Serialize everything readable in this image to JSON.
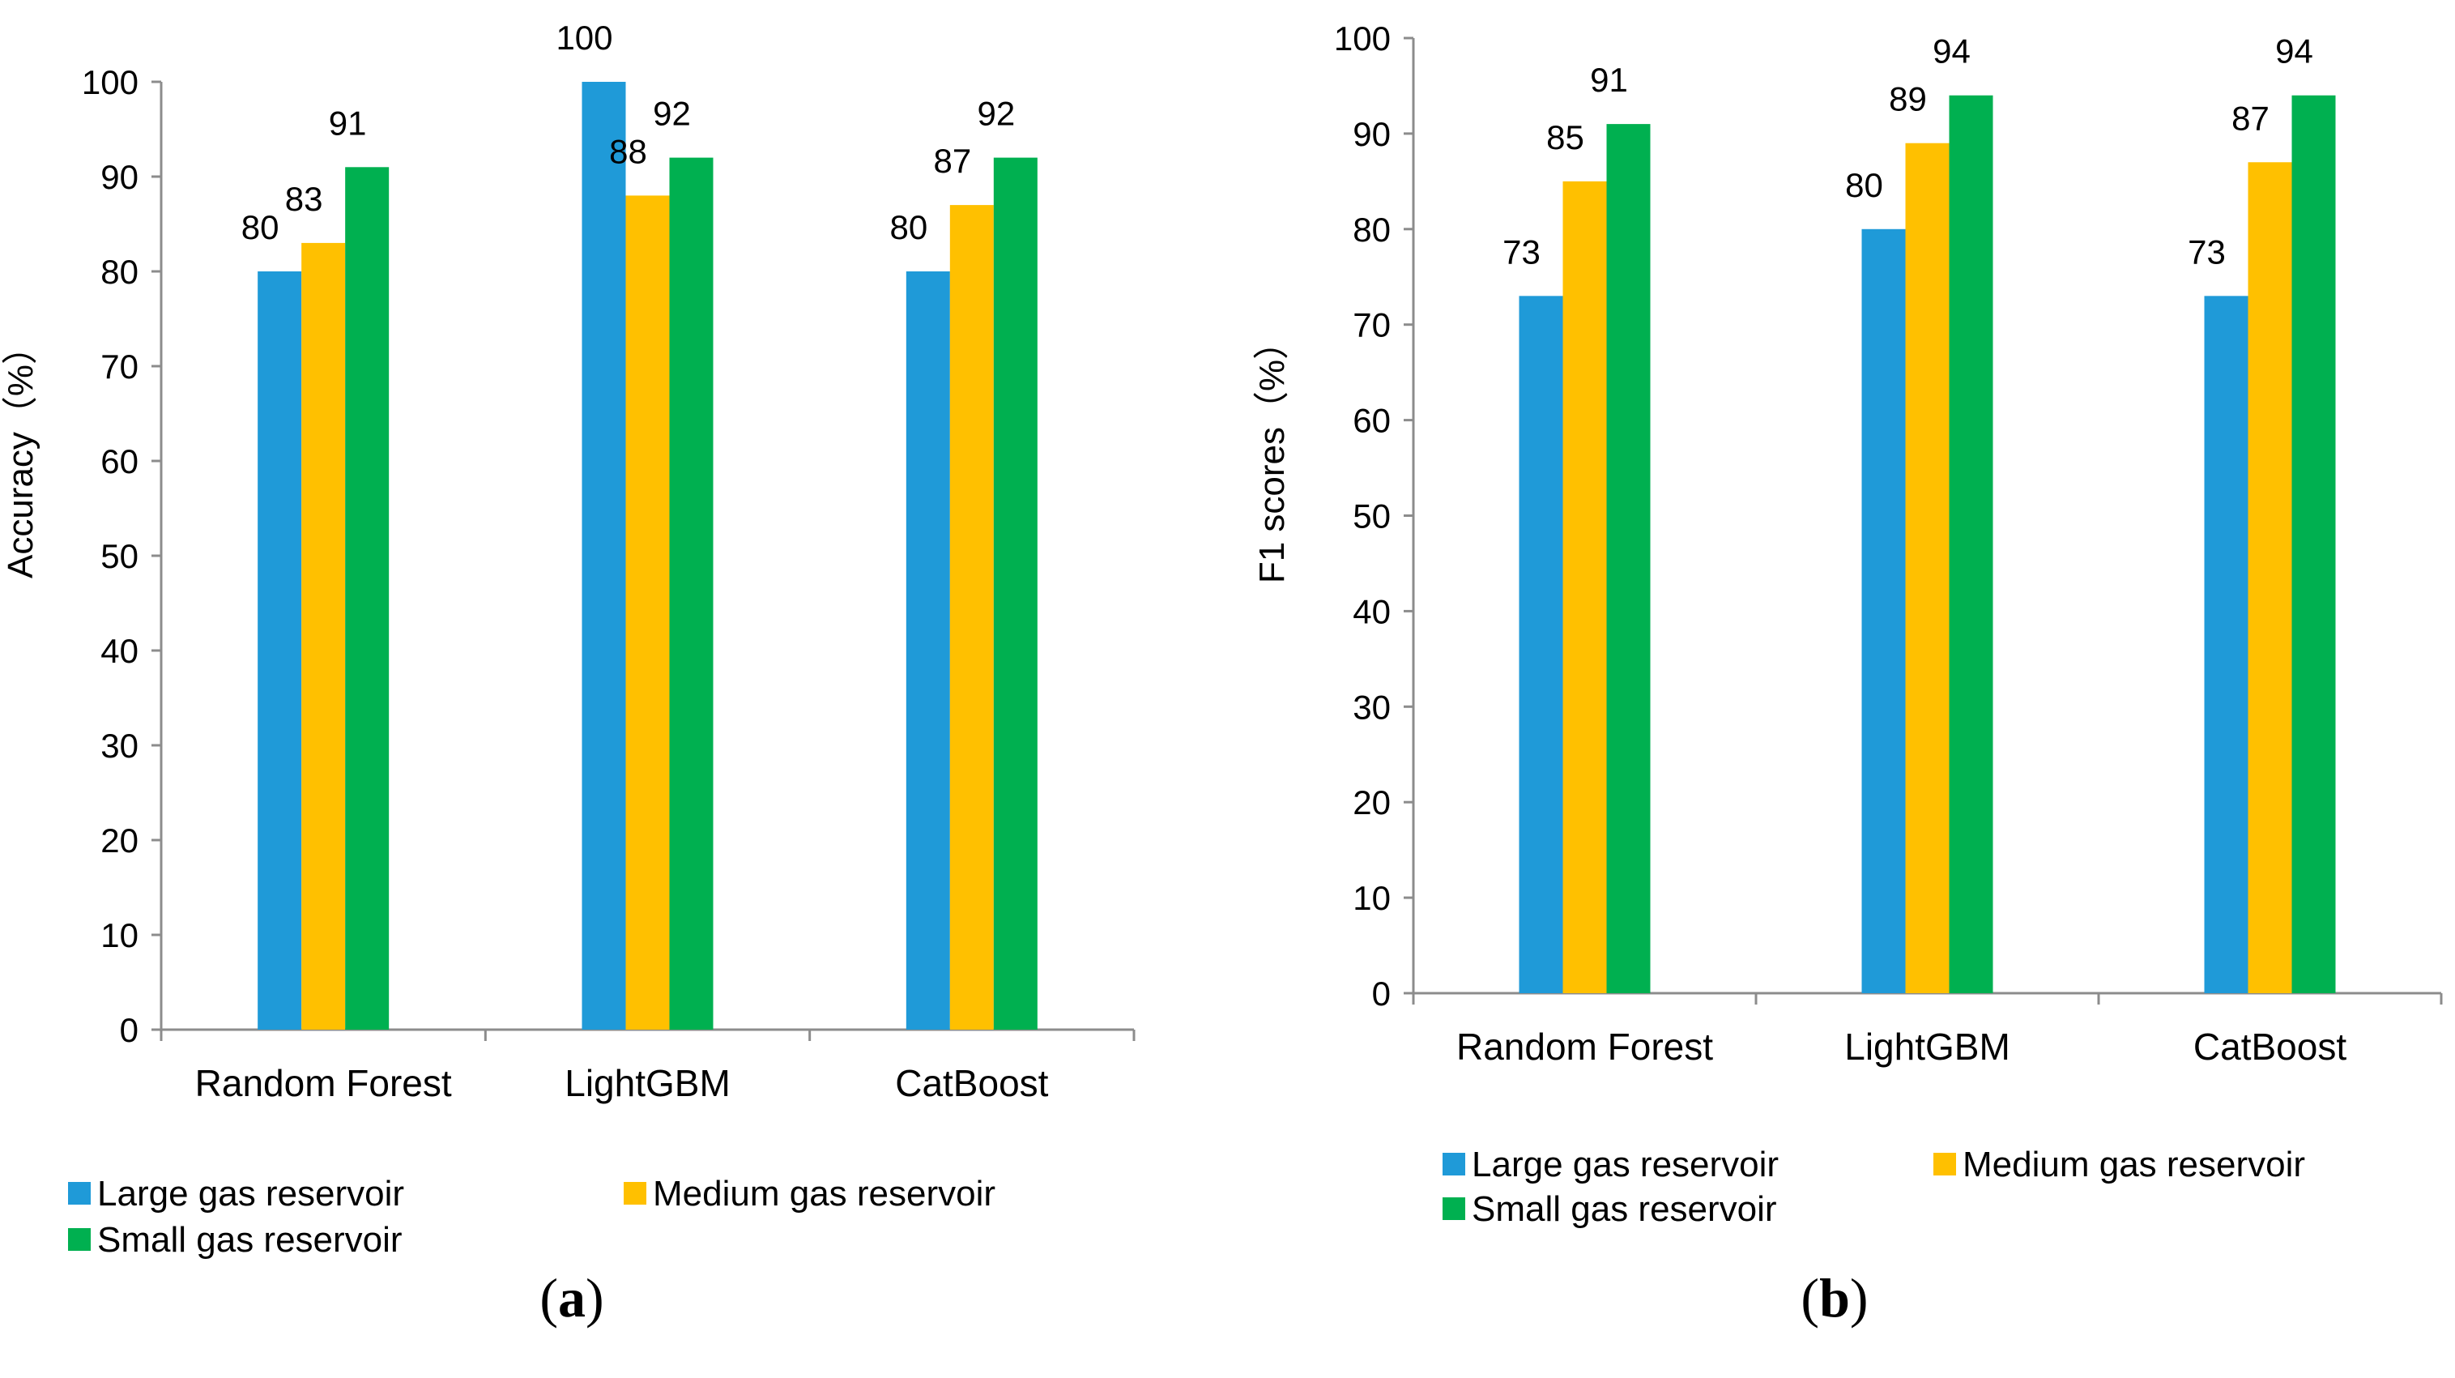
{
  "chart_data": [
    {
      "type": "bar",
      "panel": "(a)",
      "panel_letter": "a",
      "title": "",
      "xlabel": "",
      "ylabel": "Accuracy（%）",
      "ylim": [
        0,
        100
      ],
      "yticks": [
        0,
        10,
        20,
        30,
        40,
        50,
        60,
        70,
        80,
        90,
        100
      ],
      "grid": false,
      "categories": [
        "Random Forest",
        "LightGBM",
        "CatBoost"
      ],
      "series": [
        {
          "name": "Large gas reservoir",
          "color": "#1f9ad8",
          "values": [
            80,
            100,
            80
          ]
        },
        {
          "name": "Medium gas reservoir",
          "color": "#ffc000",
          "values": [
            83,
            88,
            87
          ]
        },
        {
          "name": "Small gas reservoir",
          "color": "#00b050",
          "values": [
            91,
            92,
            92
          ]
        }
      ],
      "legend_position": "bottom"
    },
    {
      "type": "bar",
      "panel": "(b)",
      "panel_letter": "b",
      "title": "",
      "xlabel": "",
      "ylabel": "F1 scores（%）",
      "ylim": [
        0,
        100
      ],
      "yticks": [
        0,
        10,
        20,
        30,
        40,
        50,
        60,
        70,
        80,
        90,
        100
      ],
      "grid": false,
      "categories": [
        "Random Forest",
        "LightGBM",
        "CatBoost"
      ],
      "series": [
        {
          "name": "Large gas reservoir",
          "color": "#1f9ad8",
          "values": [
            73,
            80,
            73
          ]
        },
        {
          "name": "Medium gas reservoir",
          "color": "#ffc000",
          "values": [
            85,
            89,
            87
          ]
        },
        {
          "name": "Small gas reservoir",
          "color": "#00b050",
          "values": [
            91,
            94,
            94
          ]
        }
      ],
      "legend_position": "bottom"
    }
  ]
}
